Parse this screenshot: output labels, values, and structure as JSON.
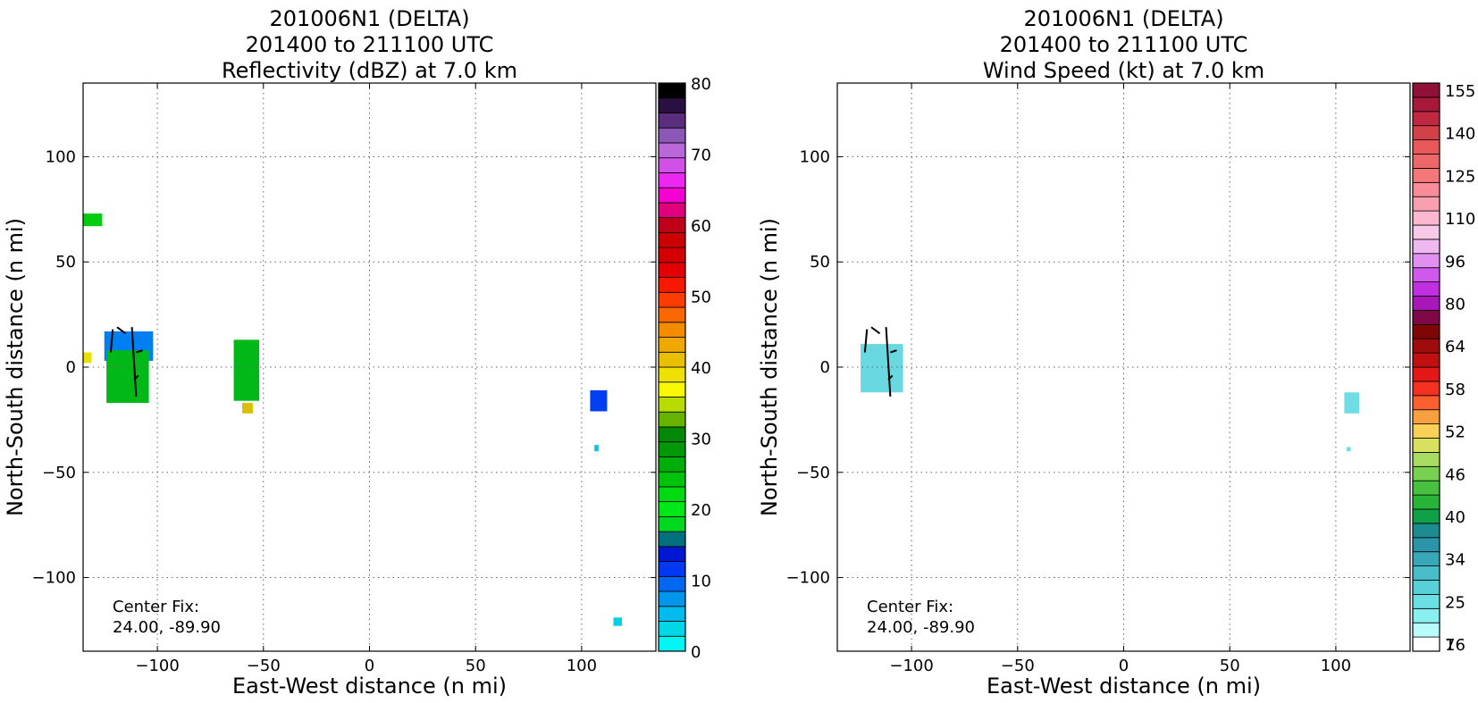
{
  "chart_data": [
    {
      "type": "heatmap",
      "title": [
        "201006N1 (DELTA)",
        "201400 to 211100 UTC",
        "Reflectivity (dBZ) at 7.0 km"
      ],
      "xlabel": "East-West distance (n mi)",
      "ylabel": "North-South distance (n mi)",
      "xlim": [
        -135,
        135
      ],
      "ylim": [
        -135,
        135
      ],
      "xticks": [
        -100,
        -50,
        0,
        50,
        100
      ],
      "yticks": [
        -100,
        -50,
        0,
        50,
        100
      ],
      "xtick_labels": [
        "−100",
        "−50",
        "0",
        "50",
        "100"
      ],
      "ytick_labels": [
        "−100",
        "−50",
        "0",
        "50",
        "100"
      ],
      "grid": true,
      "annotation": [
        "Center Fix:",
        "24.00, -89.90"
      ],
      "colorbar": {
        "label_values": [
          "80",
          "70",
          "60",
          "50",
          "40",
          "30",
          "20",
          "10",
          "0"
        ],
        "range": [
          0,
          80
        ],
        "colors": [
          "#00f5f5",
          "#00d8e8",
          "#00bcec",
          "#0096ec",
          "#0068f0",
          "#0038f4",
          "#0018d4",
          "#00707c",
          "#00d820",
          "#00e818",
          "#00da10",
          "#00c40c",
          "#00ae08",
          "#009806",
          "#008806",
          "#66b400",
          "#b8dc00",
          "#f8f800",
          "#eee000",
          "#e8c000",
          "#eea800",
          "#f48c00",
          "#fc6800",
          "#fe3c00",
          "#f81800",
          "#e40000",
          "#d40000",
          "#cc0000",
          "#c00018",
          "#e0007c",
          "#f400d0",
          "#ec28f0",
          "#d050e8",
          "#b868d8",
          "#8c58b8",
          "#5a2e7c",
          "#2a1040",
          "#000000"
        ]
      },
      "regions": [
        {
          "label": "green patch northwest",
          "value_dbz": 22,
          "color": "#00cc10",
          "x_range": [
            -135,
            -126
          ],
          "y_range": [
            67,
            73
          ]
        },
        {
          "label": "eyewall cluster blue",
          "value_dbz": 10,
          "color": "#0080f0",
          "x_range": [
            -125,
            -102
          ],
          "y_range": [
            3,
            17
          ]
        },
        {
          "label": "eyewall cluster green",
          "value_dbz": 22,
          "color": "#00b818",
          "x_range": [
            -124,
            -104
          ],
          "y_range": [
            -17,
            8
          ]
        },
        {
          "label": "small yellow cell west",
          "value_dbz": 38,
          "color": "#e8e000",
          "x_range": [
            -135,
            -131
          ],
          "y_range": [
            2,
            7
          ]
        },
        {
          "label": "scattered green cells",
          "value_dbz": 24,
          "color": "#00b818",
          "x_range": [
            -64,
            -52
          ],
          "y_range": [
            -16,
            13
          ]
        },
        {
          "label": "yellow cell",
          "value_dbz": 40,
          "color": "#d8c000",
          "x_range": [
            -60,
            -55
          ],
          "y_range": [
            -22,
            -17
          ]
        },
        {
          "label": "east blue cell",
          "value_dbz": 8,
          "color": "#0040f0",
          "x_range": [
            104,
            112
          ],
          "y_range": [
            -21,
            -11
          ]
        },
        {
          "label": "east small cyan cell",
          "value_dbz": 3,
          "color": "#00c8e8",
          "x_range": [
            106,
            108
          ],
          "y_range": [
            -40,
            -37
          ]
        },
        {
          "label": "southeast cyan cell",
          "value_dbz": 3,
          "color": "#00d0e8",
          "x_range": [
            115,
            119
          ],
          "y_range": [
            -123,
            -119
          ]
        }
      ]
    },
    {
      "type": "heatmap",
      "title": [
        "201006N1 (DELTA)",
        "201400 to 211100 UTC",
        "Wind Speed (kt) at 7.0 km"
      ],
      "xlabel": "East-West distance (n mi)",
      "ylabel": "North-South distance (n mi)",
      "xlim": [
        -135,
        135
      ],
      "ylim": [
        -135,
        135
      ],
      "xticks": [
        -100,
        -50,
        0,
        50,
        100
      ],
      "yticks": [
        -100,
        -50,
        0,
        50,
        100
      ],
      "xtick_labels": [
        "−100",
        "−50",
        "0",
        "50",
        "100"
      ],
      "ytick_labels": [
        "−100",
        "−50",
        "0",
        "50",
        "100"
      ],
      "grid": true,
      "annotation": [
        "Center Fix:",
        "24.00, -89.90"
      ],
      "colorbar": {
        "label_values": [
          "155",
          "140",
          "125",
          "110",
          "96",
          "80",
          "64",
          "58",
          "52",
          "46",
          "40",
          "34",
          "25",
          "16",
          "7"
        ],
        "colors": [
          "#ffffff",
          "#b8fcfc",
          "#88f0f0",
          "#6ae0e4",
          "#58d0d8",
          "#48bcc8",
          "#38a8b8",
          "#2a94a8",
          "#1c8c90",
          "#10a048",
          "#28b438",
          "#48c040",
          "#78d050",
          "#a8dc60",
          "#d8e060",
          "#f8d058",
          "#f8a040",
          "#fc6030",
          "#f43020",
          "#e41818",
          "#c01010",
          "#a00c0c",
          "#800606",
          "#800848",
          "#a818b8",
          "#c030e0",
          "#d058ec",
          "#e090f0",
          "#f0b8f0",
          "#f8c8e8",
          "#fcb8d0",
          "#f8a0b0",
          "#f88c98",
          "#f47878",
          "#ec6868",
          "#e85858",
          "#d44048",
          "#c02840",
          "#a81838",
          "#901038"
        ]
      },
      "regions": [
        {
          "label": "eyewall cyan cluster",
          "value_kt": 16,
          "color": "#6ad8e0",
          "x_range": [
            -124,
            -104
          ],
          "y_range": [
            -12,
            11
          ]
        },
        {
          "label": "east cyan cell",
          "value_kt": 14,
          "color": "#70dce4",
          "x_range": [
            104,
            111
          ],
          "y_range": [
            -22,
            -12
          ]
        },
        {
          "label": "east small cyan cell",
          "value_kt": 14,
          "color": "#70dce4",
          "x_range": [
            105,
            107
          ],
          "y_range": [
            -40,
            -38
          ]
        }
      ]
    }
  ]
}
